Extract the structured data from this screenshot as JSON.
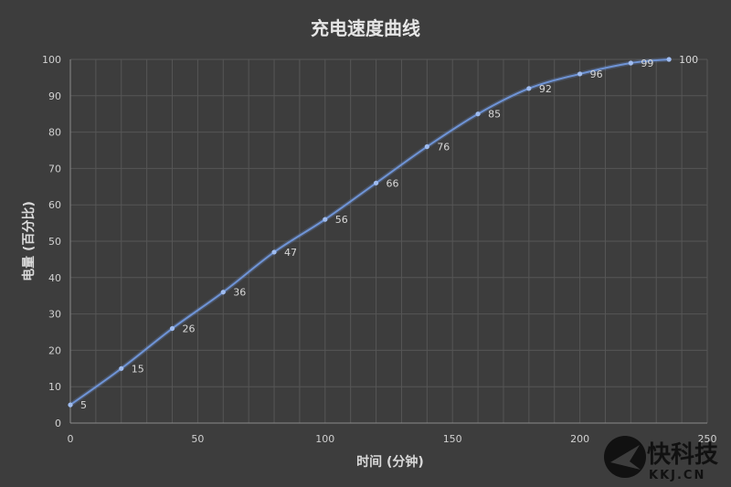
{
  "chart_data": {
    "type": "line",
    "title": "充电速度曲线",
    "xlabel": "时间 (分钟)",
    "ylabel": "电量 (百分比)",
    "xlim": [
      0,
      250
    ],
    "ylim": [
      0,
      100
    ],
    "xticks": [
      0,
      50,
      100,
      150,
      200,
      250
    ],
    "yticks": [
      0,
      10,
      20,
      30,
      40,
      50,
      60,
      70,
      80,
      90,
      100
    ],
    "grid": true,
    "series": [
      {
        "x": [
          0,
          20,
          40,
          60,
          80,
          100,
          120,
          140,
          160,
          180,
          200,
          220,
          235
        ],
        "values": [
          5,
          15,
          26,
          36,
          47,
          56,
          66,
          76,
          85,
          92,
          96,
          99,
          100
        ]
      }
    ],
    "colors": {
      "line": "#6f94d6",
      "marker": "#9fbcf0",
      "background": "#3d3d3d"
    }
  },
  "watermark": {
    "text": "快科技",
    "sub": "KKJ.CN"
  }
}
